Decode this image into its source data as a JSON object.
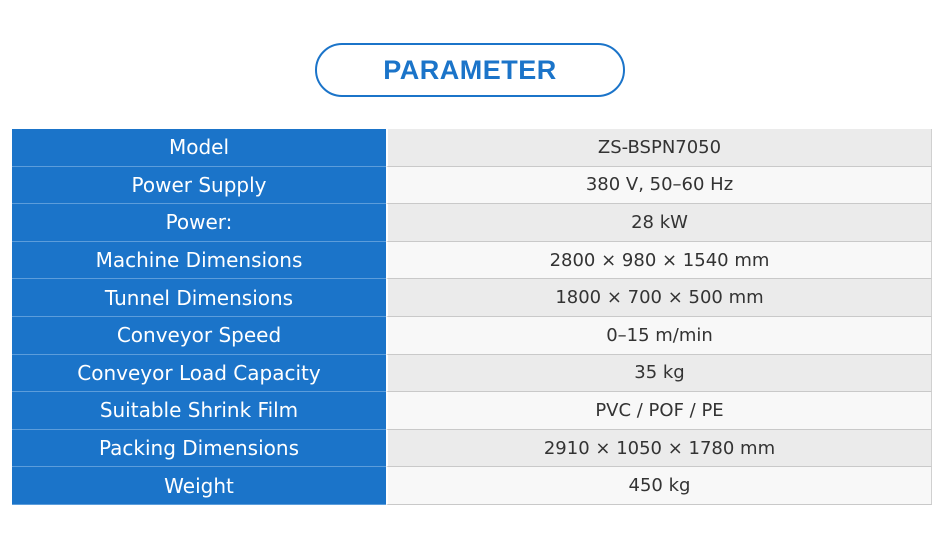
{
  "header": {
    "title": "PARAMETER"
  },
  "table": {
    "rows": [
      [
        "Model",
        "ZS-BSPN7050"
      ],
      [
        "Power Supply",
        "380 V, 50–60 Hz"
      ],
      [
        "Power:",
        "28 kW"
      ],
      [
        "Machine Dimensions",
        "2800 × 980 × 1540 mm"
      ],
      [
        "Tunnel Dimensions",
        "1800 × 700 × 500 mm"
      ],
      [
        "Conveyor Speed",
        "0–15 m/min"
      ],
      [
        "Conveyor Load Capacity",
        "35 kg"
      ],
      [
        "Suitable Shrink Film",
        "PVC / POF / PE"
      ],
      [
        "Packing Dimensions",
        "2910 × 1050 × 1780 mm"
      ],
      [
        "Weight",
        "450 kg"
      ]
    ]
  }
}
